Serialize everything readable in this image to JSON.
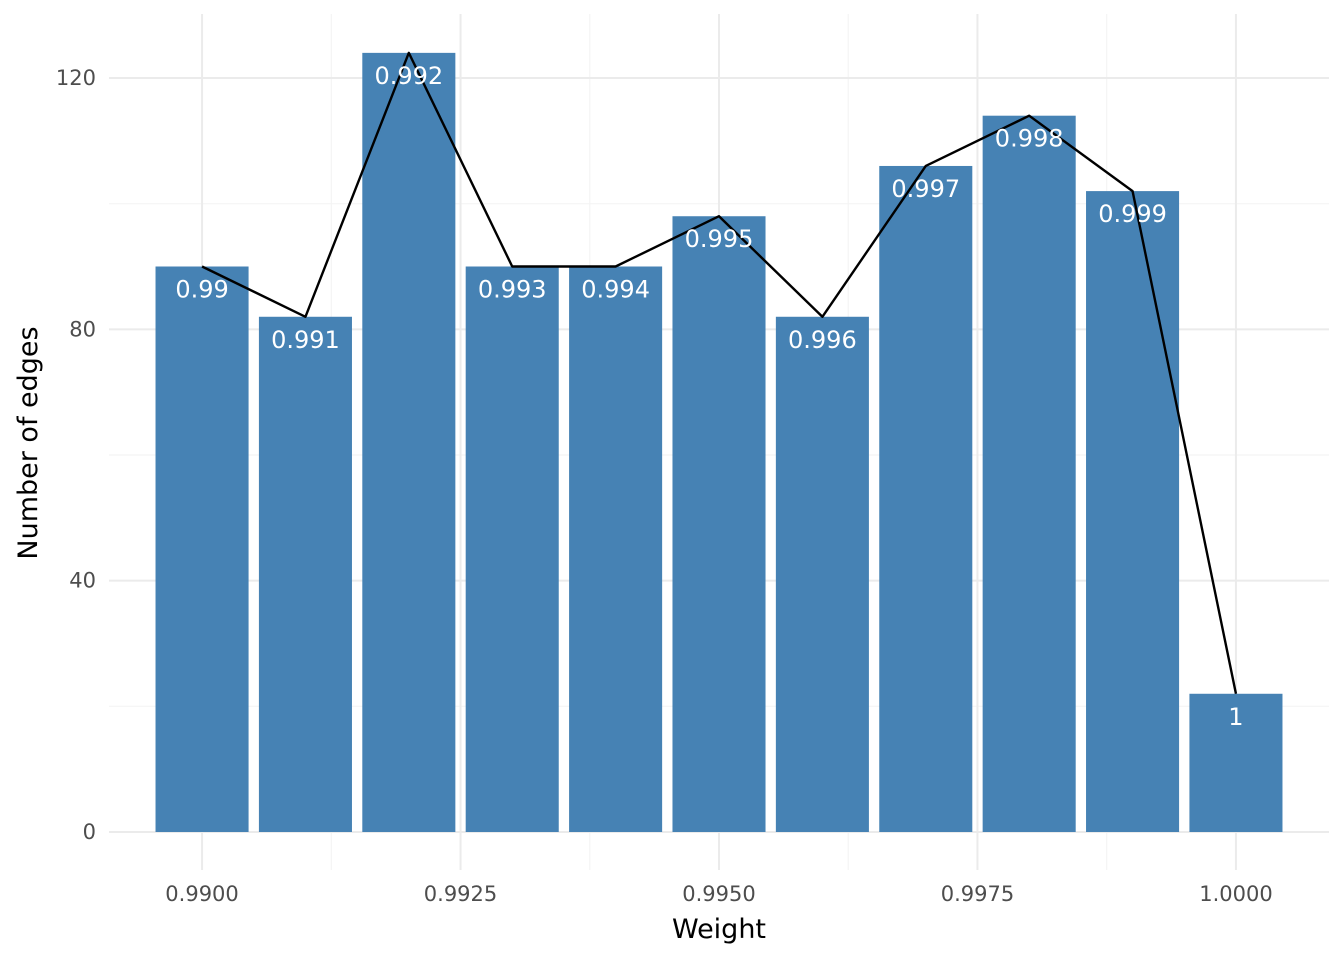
{
  "chart_data": {
    "type": "bar",
    "xlabel": "Weight",
    "ylabel": "Number of edges",
    "x": [
      0.99,
      0.991,
      0.992,
      0.993,
      0.994,
      0.995,
      0.996,
      0.997,
      0.998,
      0.999,
      1.0
    ],
    "values": [
      90,
      82,
      124,
      90,
      90,
      98,
      82,
      106,
      114,
      102,
      22
    ],
    "bar_labels": [
      "0.99",
      "0.991",
      "0.992",
      "0.993",
      "0.994",
      "0.995",
      "0.996",
      "0.997",
      "0.998",
      "0.999",
      "1"
    ],
    "overlay_line": {
      "type": "line",
      "values": [
        90,
        82,
        124,
        90,
        90,
        98,
        82,
        106,
        114,
        102,
        22
      ],
      "color": "#000000"
    },
    "xlim": [
      0.9891,
      1.0009
    ],
    "ylim": [
      0,
      130
    ],
    "x_ticks": [
      0.99,
      0.9925,
      0.995,
      0.9975,
      1.0
    ],
    "x_tick_labels": [
      "0.9900",
      "0.9925",
      "0.9950",
      "0.9975",
      "1.0000"
    ],
    "y_ticks": [
      0,
      40,
      80,
      120
    ],
    "y_tick_labels": [
      "0",
      "40",
      "80",
      "120"
    ],
    "grid": true,
    "legend": "none",
    "colors": {
      "bar": "#4682b4",
      "line": "#000000",
      "grid_major": "#ebebeb",
      "grid_minor": "#f4f4f4",
      "bar_label": "#ffffff"
    }
  }
}
